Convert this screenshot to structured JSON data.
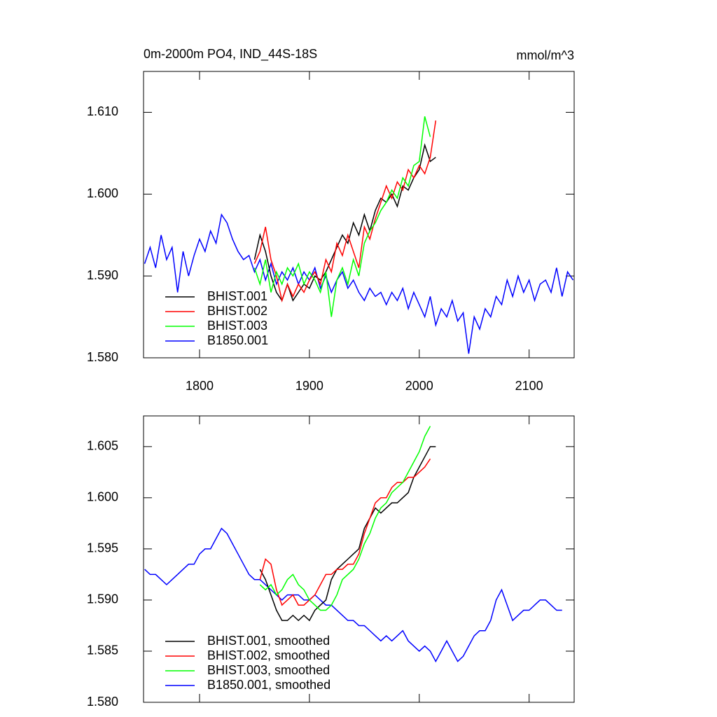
{
  "chart_data": [
    {
      "type": "line",
      "title": "0m-2000m PO4, IND_44S-18S",
      "units": "mmol/m^3",
      "xlim": [
        1749,
        2141
      ],
      "xticks": [
        1800,
        1900,
        2000,
        2100
      ],
      "ylim": [
        1.58,
        1.615
      ],
      "yticks": [
        {
          "value": 1.58,
          "label": "1.580"
        },
        {
          "value": 1.59,
          "label": "1.590"
        },
        {
          "value": 1.6,
          "label": "1.600"
        },
        {
          "value": 1.61,
          "label": "1.610"
        }
      ],
      "legend": "lower left",
      "series": [
        {
          "name": "B1850.001",
          "color": "#0000ff",
          "x": [
            1750,
            1755,
            1760,
            1765,
            1770,
            1775,
            1780,
            1785,
            1790,
            1795,
            1800,
            1805,
            1810,
            1815,
            1820,
            1825,
            1830,
            1835,
            1840,
            1845,
            1850,
            1855,
            1860,
            1865,
            1870,
            1875,
            1880,
            1885,
            1890,
            1895,
            1900,
            1905,
            1910,
            1915,
            1920,
            1925,
            1930,
            1935,
            1940,
            1945,
            1950,
            1955,
            1960,
            1965,
            1970,
            1975,
            1980,
            1985,
            1990,
            1995,
            2000,
            2005,
            2010,
            2015,
            2020,
            2025,
            2030,
            2035,
            2040,
            2045,
            2050,
            2055,
            2060,
            2065,
            2070,
            2075,
            2080,
            2085,
            2090,
            2095,
            2100,
            2105,
            2110,
            2115,
            2120,
            2125,
            2130,
            2135,
            2140
          ],
          "values": [
            1.5915,
            1.5935,
            1.591,
            1.595,
            1.592,
            1.5935,
            1.588,
            1.593,
            1.59,
            1.5925,
            1.5945,
            1.593,
            1.5955,
            1.594,
            1.5975,
            1.5965,
            1.5945,
            1.593,
            1.592,
            1.5925,
            1.5905,
            1.592,
            1.5895,
            1.5915,
            1.589,
            1.5905,
            1.5895,
            1.591,
            1.589,
            1.5905,
            1.5895,
            1.591,
            1.5885,
            1.59,
            1.588,
            1.5895,
            1.5905,
            1.5885,
            1.5895,
            1.588,
            1.587,
            1.5885,
            1.5875,
            1.588,
            1.5865,
            1.588,
            1.587,
            1.5885,
            1.586,
            1.588,
            1.5865,
            1.585,
            1.5875,
            1.584,
            1.586,
            1.585,
            1.587,
            1.5845,
            1.5855,
            1.5805,
            1.585,
            1.5835,
            1.586,
            1.585,
            1.5875,
            1.5865,
            1.5895,
            1.5875,
            1.59,
            1.588,
            1.5895,
            1.587,
            1.589,
            1.5895,
            1.588,
            1.591,
            1.5875,
            1.5905,
            1.5895
          ]
        },
        {
          "name": "BHIST.001",
          "color": "#000000",
          "x": [
            1850,
            1855,
            1860,
            1865,
            1870,
            1875,
            1880,
            1885,
            1890,
            1895,
            1900,
            1905,
            1910,
            1915,
            1920,
            1925,
            1930,
            1935,
            1940,
            1945,
            1950,
            1955,
            1960,
            1965,
            1970,
            1975,
            1980,
            1985,
            1990,
            1995,
            2000,
            2005,
            2010,
            2015
          ],
          "values": [
            1.592,
            1.595,
            1.593,
            1.59,
            1.588,
            1.587,
            1.589,
            1.587,
            1.588,
            1.589,
            1.5885,
            1.59,
            1.5895,
            1.5905,
            1.592,
            1.5935,
            1.595,
            1.594,
            1.5965,
            1.595,
            1.5975,
            1.5955,
            1.598,
            1.5995,
            1.599,
            1.6,
            1.5985,
            1.601,
            1.6005,
            1.602,
            1.603,
            1.606,
            1.604,
            1.6045
          ]
        },
        {
          "name": "BHIST.002",
          "color": "#ff0000",
          "x": [
            1850,
            1855,
            1860,
            1865,
            1870,
            1875,
            1880,
            1885,
            1890,
            1895,
            1900,
            1905,
            1910,
            1915,
            1920,
            1925,
            1930,
            1935,
            1940,
            1945,
            1950,
            1955,
            1960,
            1965,
            1970,
            1975,
            1980,
            1985,
            1990,
            1995,
            2000,
            2005,
            2010,
            2015
          ],
          "values": [
            1.5915,
            1.593,
            1.596,
            1.592,
            1.59,
            1.587,
            1.589,
            1.5875,
            1.589,
            1.588,
            1.5895,
            1.5905,
            1.589,
            1.592,
            1.5905,
            1.594,
            1.5925,
            1.595,
            1.593,
            1.591,
            1.596,
            1.5945,
            1.597,
            1.599,
            1.601,
            1.5995,
            1.6015,
            1.6005,
            1.603,
            1.602,
            1.6035,
            1.6025,
            1.6045,
            1.609
          ]
        },
        {
          "name": "BHIST.003",
          "color": "#00ff00",
          "x": [
            1850,
            1855,
            1860,
            1865,
            1870,
            1875,
            1880,
            1885,
            1890,
            1895,
            1900,
            1905,
            1910,
            1915,
            1920,
            1925,
            1930,
            1935,
            1940,
            1945,
            1950,
            1955,
            1960,
            1965,
            1970,
            1975,
            1980,
            1985,
            1990,
            1995,
            2000,
            2005,
            2010
          ],
          "values": [
            1.591,
            1.589,
            1.592,
            1.588,
            1.5905,
            1.589,
            1.591,
            1.59,
            1.5915,
            1.589,
            1.5905,
            1.5895,
            1.588,
            1.5905,
            1.585,
            1.5895,
            1.591,
            1.589,
            1.592,
            1.59,
            1.594,
            1.5955,
            1.5965,
            1.598,
            1.599,
            1.6005,
            1.5995,
            1.602,
            1.601,
            1.6035,
            1.604,
            1.6095,
            1.607
          ]
        }
      ]
    },
    {
      "type": "line",
      "xlim": [
        1749,
        2141
      ],
      "xticks": [
        1800,
        1900,
        2000,
        2100
      ],
      "ylim": [
        1.58,
        1.608
      ],
      "yticks": [
        {
          "value": 1.58,
          "label": "1.580"
        },
        {
          "value": 1.585,
          "label": "1.585"
        },
        {
          "value": 1.59,
          "label": "1.590"
        },
        {
          "value": 1.595,
          "label": "1.595"
        },
        {
          "value": 1.6,
          "label": "1.600"
        },
        {
          "value": 1.605,
          "label": "1.605"
        }
      ],
      "legend": "lower left",
      "series": [
        {
          "name": "B1850.001, smoothed",
          "color": "#0000ff",
          "x": [
            1750,
            1755,
            1760,
            1765,
            1770,
            1775,
            1780,
            1785,
            1790,
            1795,
            1800,
            1805,
            1810,
            1815,
            1820,
            1825,
            1830,
            1835,
            1840,
            1845,
            1850,
            1855,
            1860,
            1865,
            1870,
            1875,
            1880,
            1885,
            1890,
            1895,
            1900,
            1905,
            1910,
            1915,
            1920,
            1925,
            1930,
            1935,
            1940,
            1945,
            1950,
            1955,
            1960,
            1965,
            1970,
            1975,
            1980,
            1985,
            1990,
            1995,
            2000,
            2005,
            2010,
            2015,
            2020,
            2025,
            2030,
            2035,
            2040,
            2045,
            2050,
            2055,
            2060,
            2065,
            2070,
            2075,
            2080,
            2085,
            2090,
            2095,
            2100,
            2105,
            2110,
            2115,
            2120,
            2125,
            2130
          ],
          "values": [
            1.593,
            1.5925,
            1.5925,
            1.592,
            1.5915,
            1.592,
            1.5925,
            1.593,
            1.5935,
            1.5935,
            1.5945,
            1.595,
            1.595,
            1.596,
            1.597,
            1.5965,
            1.5955,
            1.5945,
            1.5935,
            1.5925,
            1.592,
            1.592,
            1.5915,
            1.591,
            1.5905,
            1.59,
            1.5905,
            1.5905,
            1.5905,
            1.59,
            1.59,
            1.5905,
            1.59,
            1.5895,
            1.5895,
            1.589,
            1.5885,
            1.588,
            1.588,
            1.5875,
            1.5875,
            1.587,
            1.5865,
            1.586,
            1.5865,
            1.586,
            1.5865,
            1.587,
            1.586,
            1.5855,
            1.585,
            1.5855,
            1.585,
            1.584,
            1.585,
            1.586,
            1.585,
            1.584,
            1.5845,
            1.5855,
            1.5865,
            1.587,
            1.587,
            1.588,
            1.59,
            1.591,
            1.5895,
            1.588,
            1.5885,
            1.589,
            1.589,
            1.5895,
            1.59,
            1.59,
            1.5895,
            1.589,
            1.589
          ]
        },
        {
          "name": "BHIST.001, smoothed",
          "color": "#000000",
          "x": [
            1855,
            1860,
            1865,
            1870,
            1875,
            1880,
            1885,
            1890,
            1895,
            1900,
            1905,
            1910,
            1915,
            1920,
            1925,
            1930,
            1935,
            1940,
            1945,
            1950,
            1955,
            1960,
            1965,
            1970,
            1975,
            1980,
            1985,
            1990,
            1995,
            2000,
            2005,
            2010,
            2015
          ],
          "values": [
            1.593,
            1.592,
            1.5905,
            1.589,
            1.588,
            1.588,
            1.5885,
            1.588,
            1.5885,
            1.588,
            1.589,
            1.5895,
            1.59,
            1.592,
            1.593,
            1.5935,
            1.594,
            1.5945,
            1.595,
            1.597,
            1.598,
            1.599,
            1.5985,
            1.599,
            1.5995,
            1.5995,
            1.6,
            1.6005,
            1.602,
            1.603,
            1.604,
            1.605,
            1.605
          ]
        },
        {
          "name": "BHIST.002, smoothed",
          "color": "#ff0000",
          "x": [
            1855,
            1860,
            1865,
            1870,
            1875,
            1880,
            1885,
            1890,
            1895,
            1900,
            1905,
            1910,
            1915,
            1920,
            1925,
            1930,
            1935,
            1940,
            1945,
            1950,
            1955,
            1960,
            1965,
            1970,
            1975,
            1980,
            1985,
            1990,
            1995,
            2000,
            2005,
            2010
          ],
          "values": [
            1.592,
            1.594,
            1.5935,
            1.591,
            1.5895,
            1.59,
            1.5905,
            1.5895,
            1.5895,
            1.59,
            1.5905,
            1.5915,
            1.5925,
            1.5925,
            1.593,
            1.593,
            1.5935,
            1.5935,
            1.5945,
            1.5965,
            1.598,
            1.5995,
            1.6,
            1.6,
            1.601,
            1.6015,
            1.6015,
            1.602,
            1.602,
            1.6025,
            1.603,
            1.6038
          ]
        },
        {
          "name": "BHIST.003, smoothed",
          "color": "#00ff00",
          "x": [
            1855,
            1860,
            1865,
            1870,
            1875,
            1880,
            1885,
            1890,
            1895,
            1900,
            1905,
            1910,
            1915,
            1920,
            1925,
            1930,
            1935,
            1940,
            1945,
            1950,
            1955,
            1960,
            1965,
            1970,
            1975,
            1980,
            1985,
            1990,
            1995,
            2000,
            2005,
            2010
          ],
          "values": [
            1.5915,
            1.591,
            1.5915,
            1.5905,
            1.591,
            1.592,
            1.5925,
            1.5915,
            1.591,
            1.59,
            1.5895,
            1.589,
            1.589,
            1.5895,
            1.5905,
            1.592,
            1.5925,
            1.593,
            1.594,
            1.5955,
            1.5965,
            1.598,
            1.599,
            1.5995,
            1.6005,
            1.601,
            1.6015,
            1.6025,
            1.6035,
            1.6045,
            1.606,
            1.607
          ]
        }
      ]
    }
  ]
}
